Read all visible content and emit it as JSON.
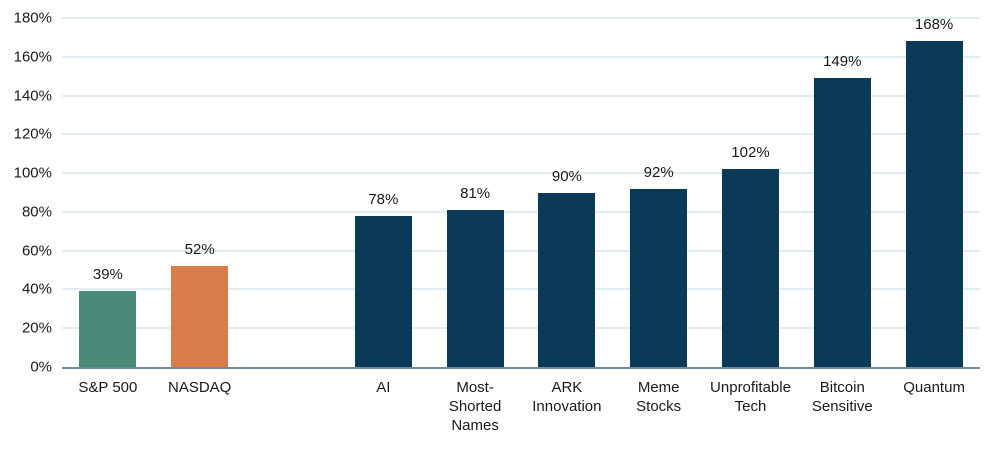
{
  "chart_data": {
    "type": "bar",
    "title": "",
    "xlabel": "",
    "ylabel": "",
    "categories": [
      "S&P 500",
      "NASDAQ",
      "AI",
      "Most-Shorted Names",
      "ARK Innovation",
      "Meme Stocks",
      "Unprofitable Tech",
      "Bitcoin Sensitive",
      "Quantum"
    ],
    "values": [
      39,
      52,
      78,
      81,
      90,
      92,
      102,
      149,
      168
    ],
    "data_labels": [
      "39%",
      "52%",
      "78%",
      "81%",
      "90%",
      "92%",
      "102%",
      "149%",
      "168%"
    ],
    "bar_colors": [
      "#4a8a78",
      "#d97c4a",
      "#0a3a57",
      "#0a3a57",
      "#0a3a57",
      "#0a3a57",
      "#0a3a57",
      "#0a3a57",
      "#0a3a57"
    ],
    "ylim": [
      0,
      180
    ],
    "ytick_step": 20,
    "ytick_labels": [
      "0%",
      "20%",
      "40%",
      "60%",
      "80%",
      "100%",
      "120%",
      "140%",
      "160%",
      "180%"
    ],
    "grid": true,
    "legend_position": "none",
    "group_gap_after_index": 1
  },
  "colors": {
    "grid": "#e0ebf2",
    "axis_line": "#6d8c99",
    "text": "#1a1a1a"
  }
}
